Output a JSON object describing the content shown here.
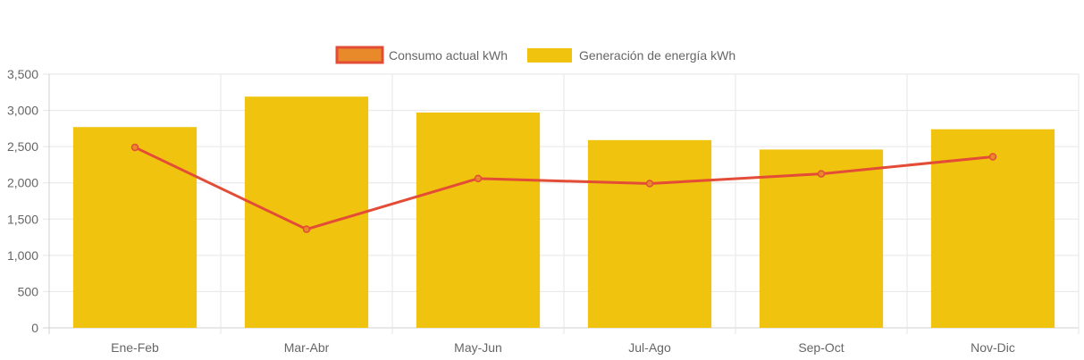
{
  "chart_data": {
    "type": "bar",
    "categories": [
      "Ene-Feb",
      "Mar-Abr",
      "May-Jun",
      "Jul-Ago",
      "Sep-Oct",
      "Nov-Dic"
    ],
    "series": [
      {
        "name": "Consumo actual kWh",
        "kind": "line",
        "color": "#e34c36",
        "fill": "#e98a2a",
        "values": [
          2490,
          1360,
          2060,
          1990,
          2125,
          2360
        ]
      },
      {
        "name": "Generación de energía kWh",
        "kind": "bar",
        "color": "#f0c30f",
        "values": [
          2770,
          3190,
          2970,
          2590,
          2460,
          2740
        ]
      }
    ],
    "y_ticks": [
      "0",
      "500",
      "1,000",
      "1,500",
      "2,000",
      "2,500",
      "3,000",
      "3,500"
    ],
    "ylim": [
      0,
      3500
    ],
    "grid": true,
    "legend_position": "top-center"
  }
}
